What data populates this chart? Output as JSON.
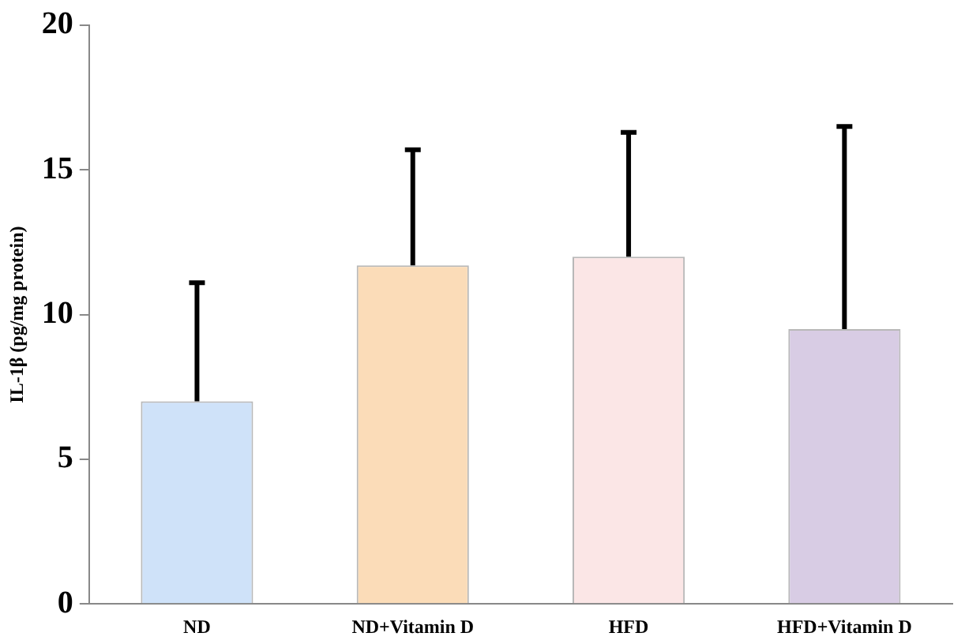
{
  "chart_data": {
    "type": "bar",
    "ylabel": "IL-1β (pg/mg protein)",
    "categories": [
      "ND",
      "ND+Vitamin D",
      "HFD",
      "HFD+Vitamin D"
    ],
    "values": [
      7.0,
      11.7,
      12.0,
      9.5
    ],
    "colors": [
      "#cfe2f9",
      "#fbdcb8",
      "#fbe6e6",
      "#d8cce4"
    ],
    "errors": [
      [
        7.0,
        11.1
      ],
      [
        11.7,
        15.7
      ],
      [
        12.0,
        16.3
      ],
      [
        9.5,
        16.5
      ]
    ],
    "ylim": [
      0,
      20
    ],
    "yticks": [
      0,
      5,
      10,
      15,
      20
    ],
    "grid": false,
    "legend": false
  }
}
